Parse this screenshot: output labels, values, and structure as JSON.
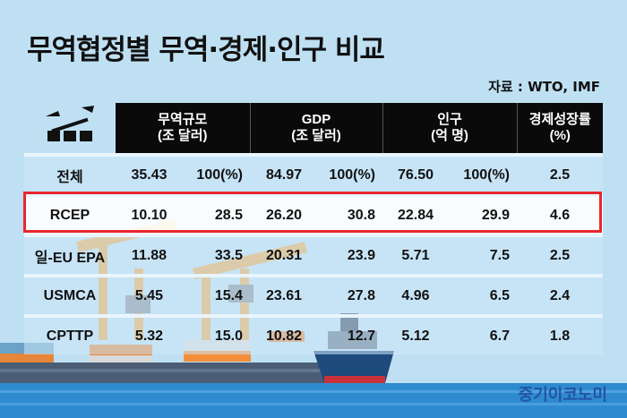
{
  "title": "무역협정별 무역·경제·인구 비교",
  "source": "자료 : WTO, IMF",
  "table": {
    "headers": [
      {
        "l1": "무역규모",
        "l2": "(조 달러)"
      },
      {
        "l1": "GDP",
        "l2": "(조 달러)"
      },
      {
        "l1": "인구",
        "l2": "(억 명)"
      },
      {
        "l1": "경제성장률",
        "l2": "(%)"
      }
    ],
    "rows": [
      {
        "label": "전체",
        "trade": "35.43",
        "trade_pct": "100(%)",
        "gdp": "84.97",
        "gdp_pct": "100(%)",
        "pop": "76.50",
        "pop_pct": "100(%)",
        "growth": "2.5"
      },
      {
        "label": "RCEP",
        "trade": "10.10",
        "trade_pct": "28.5",
        "gdp": "26.20",
        "gdp_pct": "30.8",
        "pop": "22.84",
        "pop_pct": "29.9",
        "growth": "4.6"
      },
      {
        "label": "일-EU EPA",
        "trade": "11.88",
        "trade_pct": "33.5",
        "gdp": "20.31",
        "gdp_pct": "23.9",
        "pop": "5.71",
        "pop_pct": "7.5",
        "growth": "2.5"
      },
      {
        "label": "USMCA",
        "trade": "5.45",
        "trade_pct": "15.4",
        "gdp": "23.61",
        "gdp_pct": "27.8",
        "pop": "4.96",
        "pop_pct": "6.5",
        "growth": "2.4"
      },
      {
        "label": "CPTTP",
        "trade": "5.32",
        "trade_pct": "15.0",
        "gdp": "10.82",
        "gdp_pct": "12.7",
        "pop": "5.12",
        "pop_pct": "6.7",
        "growth": "1.8"
      }
    ]
  },
  "highlight_row": "RCEP",
  "brand": "중기이코노미",
  "colors": {
    "highlight_border": "#e8262d",
    "header_bg": "#0a0a0a",
    "brand": "#2453a6",
    "sky": "#bfe0f3"
  },
  "icons": [
    "cargo-ship-icon"
  ]
}
